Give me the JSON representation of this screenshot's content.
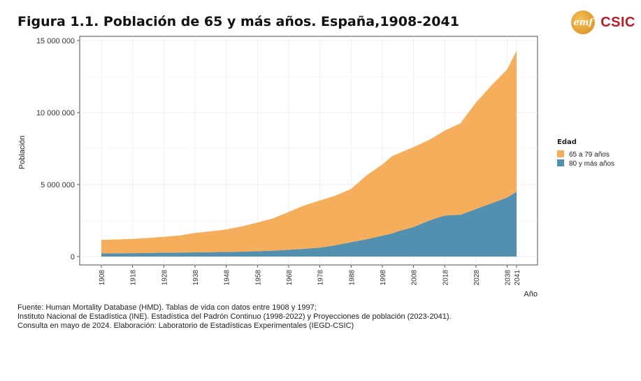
{
  "title": "Figura 1.1. Población de 65 y más años. España,1908-2041",
  "logos": {
    "left_text": "emf",
    "right_text": "CSIC"
  },
  "source_lines": [
    "Fuente: Human Mortality Database (HMD). Tablas de vida con datos entre 1908 y 1997;",
    "Instituto Nacional de Estadística (INE). Estadística del Padrón Continuo (1998-2022) y Proyecciones de población (2023-2041).",
    "Consulta en mayo de 2024. Elaboración: Laboratorio de Estadísticas Experimentales (IEGD-CSIC)"
  ],
  "chart_data": {
    "type": "area",
    "stacked": true,
    "xlabel": "Año",
    "ylabel": "Población",
    "xlim": [
      1908,
      2041
    ],
    "ylim": [
      0,
      15000000
    ],
    "x_ticks": [
      "1908",
      "1918",
      "1928",
      "1938",
      "1948",
      "1958",
      "1968",
      "1978",
      "1988",
      "1998",
      "2008",
      "2018",
      "2028",
      "2038",
      "2041"
    ],
    "x_tick_values": [
      1908,
      1918,
      1928,
      1938,
      1948,
      1958,
      1968,
      1978,
      1988,
      1998,
      2008,
      2018,
      2028,
      2038,
      2041
    ],
    "y_ticks": [
      "0",
      "5 000 000",
      "10 000 000",
      "15 000 000"
    ],
    "y_tick_values": [
      0,
      5000000,
      10000000,
      15000000
    ],
    "grid": true,
    "legend": {
      "title": "Edad",
      "position": "right"
    },
    "x": [
      1908,
      1913,
      1918,
      1923,
      1928,
      1933,
      1938,
      1943,
      1948,
      1953,
      1958,
      1963,
      1968,
      1973,
      1978,
      1983,
      1988,
      1993,
      1998,
      2001,
      2003,
      2008,
      2013,
      2018,
      2023,
      2028,
      2033,
      2038,
      2041
    ],
    "series": [
      {
        "name": "80 y más años",
        "color": "#5390b0",
        "values": [
          220000,
          230000,
          240000,
          250000,
          270000,
          280000,
          290000,
          300000,
          320000,
          340000,
          370000,
          410000,
          470000,
          540000,
          620000,
          780000,
          1000000,
          1200000,
          1450000,
          1600000,
          1750000,
          2050000,
          2500000,
          2850000,
          2900000,
          3300000,
          3700000,
          4100000,
          4500000
        ]
      },
      {
        "name": "65 a 79 años",
        "color": "#f5ae5c",
        "values": [
          930000,
          960000,
          990000,
          1040000,
          1100000,
          1180000,
          1350000,
          1450000,
          1560000,
          1760000,
          1990000,
          2240000,
          2630000,
          3010000,
          3280000,
          3460000,
          3700000,
          4450000,
          4950000,
          5350000,
          5400000,
          5550000,
          5600000,
          5900000,
          6350000,
          7400000,
          8200000,
          8900000,
          9800000
        ]
      }
    ]
  }
}
